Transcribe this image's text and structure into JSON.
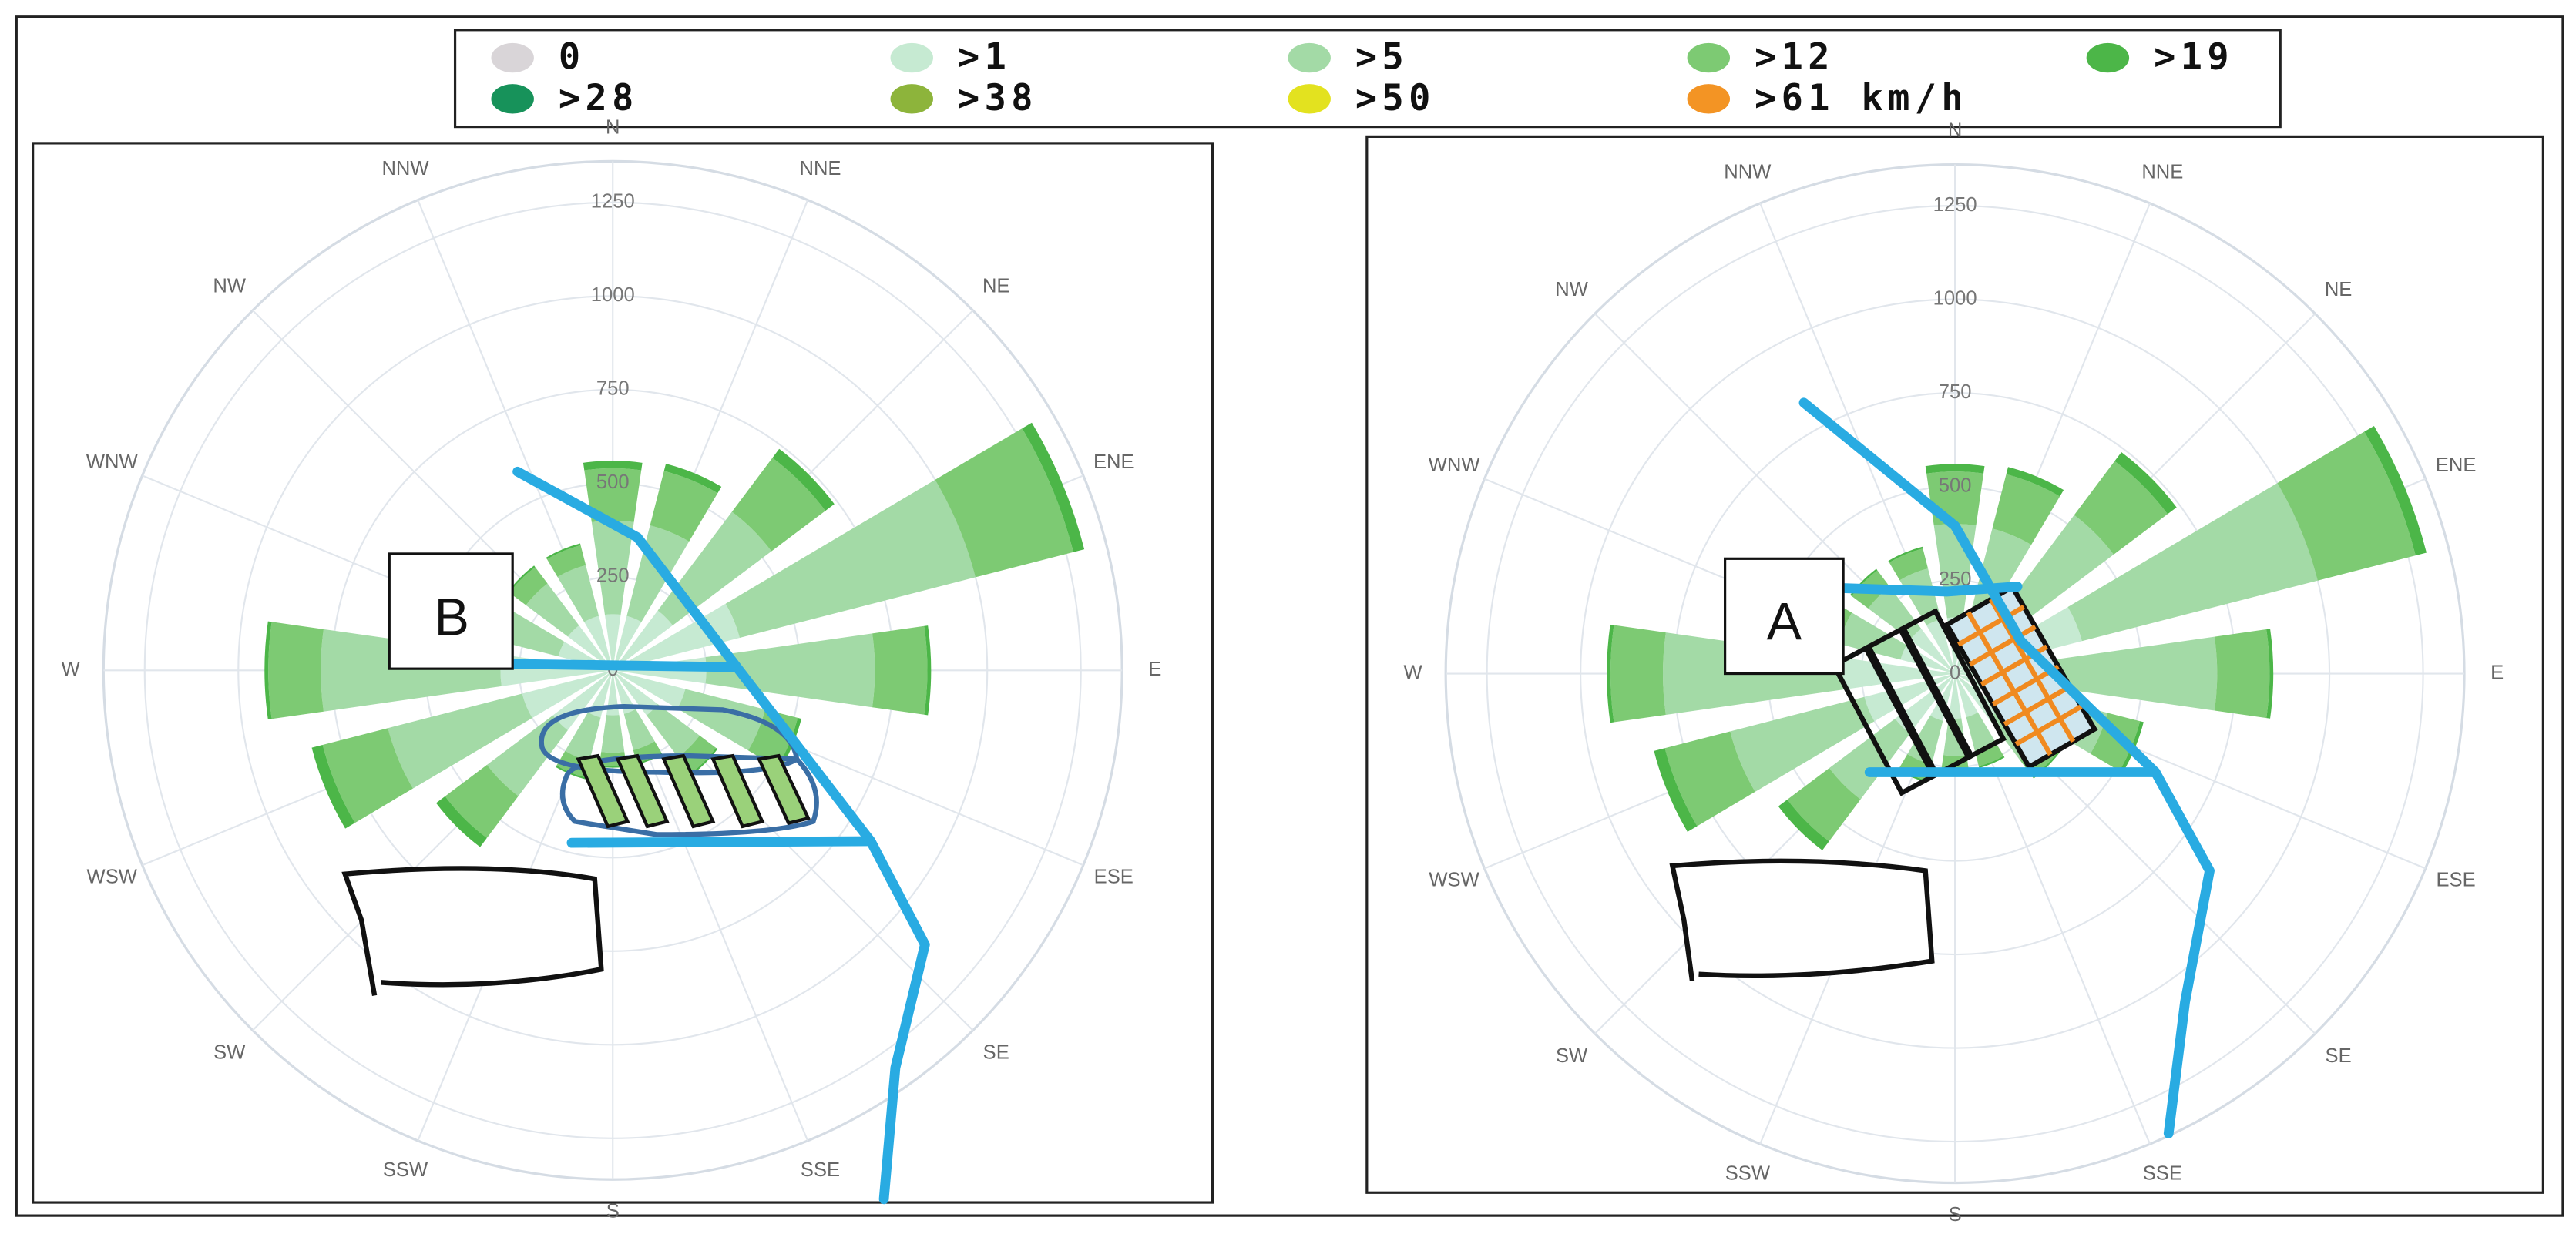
{
  "chart_data": [
    {
      "type": "windrose",
      "categories": [
        "N",
        "NNE",
        "NE",
        "ENE",
        "E",
        "ESE",
        "SE",
        "SSE",
        "S",
        "SSW",
        "SW",
        "WSW",
        "W",
        "WNW",
        "NW",
        "NNW"
      ],
      "rlim": [
        0,
        1360
      ],
      "rticks": [
        0,
        250,
        500,
        750,
        1000,
        1250
      ],
      "grid": true,
      "annotation": "B",
      "series": [
        {
          "name": "0",
          "color": "#d9d5d8",
          "values": [
            0,
            0,
            0,
            0,
            0,
            0,
            0,
            0,
            0,
            0,
            0,
            0,
            0,
            0,
            0,
            0
          ]
        },
        {
          "name": ">1",
          "color": "#c6ead2",
          "values": [
            150,
            150,
            200,
            350,
            250,
            200,
            150,
            120,
            120,
            130,
            200,
            250,
            300,
            150,
            150,
            150
          ]
        },
        {
          "name": ">5",
          "color": "#a3daa6",
          "values": [
            250,
            250,
            330,
            650,
            450,
            220,
            140,
            100,
            100,
            120,
            220,
            370,
            480,
            170,
            140,
            140
          ]
        },
        {
          "name": ">12",
          "color": "#7dca73",
          "values": [
            140,
            150,
            180,
            270,
            140,
            90,
            55,
            35,
            35,
            45,
            140,
            180,
            140,
            70,
            55,
            55
          ]
        },
        {
          "name": ">19",
          "color": "#4cb648",
          "values": [
            20,
            20,
            30,
            30,
            10,
            10,
            5,
            5,
            5,
            5,
            30,
            30,
            10,
            10,
            5,
            5
          ]
        },
        {
          "name": ">28",
          "color": "#17925a",
          "values": [
            0,
            0,
            0,
            0,
            0,
            0,
            0,
            0,
            0,
            0,
            0,
            0,
            0,
            0,
            0,
            0
          ]
        },
        {
          "name": ">38",
          "color": "#8db43b",
          "values": [
            0,
            0,
            0,
            0,
            0,
            0,
            0,
            0,
            0,
            0,
            0,
            0,
            0,
            0,
            0,
            0
          ]
        },
        {
          "name": ">50",
          "color": "#e3e21f",
          "values": [
            0,
            0,
            0,
            0,
            0,
            0,
            0,
            0,
            0,
            0,
            0,
            0,
            0,
            0,
            0,
            0
          ]
        },
        {
          "name": ">61 km/h",
          "color": "#f39424",
          "values": [
            0,
            0,
            0,
            0,
            0,
            0,
            0,
            0,
            0,
            0,
            0,
            0,
            0,
            0,
            0,
            0
          ]
        }
      ]
    },
    {
      "type": "windrose",
      "categories": [
        "N",
        "NNE",
        "NE",
        "ENE",
        "E",
        "ESE",
        "SE",
        "SSE",
        "S",
        "SSW",
        "SW",
        "WSW",
        "W",
        "WNW",
        "NW",
        "NNW"
      ],
      "rlim": [
        0,
        1360
      ],
      "rticks": [
        0,
        250,
        500,
        750,
        1000,
        1250
      ],
      "grid": true,
      "annotation": "A",
      "series": [
        {
          "color": "#d9d5d8",
          "values": [
            0,
            0,
            0,
            0,
            0,
            0,
            0,
            0,
            0,
            0,
            0,
            0,
            0,
            0,
            0,
            0
          ]
        },
        {
          "color": "#c6ead2",
          "values": [
            150,
            150,
            200,
            350,
            250,
            200,
            150,
            120,
            120,
            130,
            200,
            250,
            300,
            150,
            150,
            150
          ]
        },
        {
          "color": "#a3daa6",
          "values": [
            250,
            250,
            330,
            650,
            450,
            220,
            140,
            100,
            100,
            120,
            220,
            370,
            480,
            170,
            140,
            140
          ]
        },
        {
          "color": "#7dca73",
          "values": [
            140,
            150,
            180,
            270,
            140,
            90,
            55,
            35,
            35,
            45,
            140,
            180,
            140,
            70,
            55,
            55
          ]
        },
        {
          "color": "#4cb648",
          "values": [
            20,
            20,
            30,
            30,
            10,
            10,
            5,
            5,
            5,
            5,
            30,
            30,
            10,
            10,
            5,
            5
          ]
        },
        {
          "color": "#17925a",
          "values": [
            0,
            0,
            0,
            0,
            0,
            0,
            0,
            0,
            0,
            0,
            0,
            0,
            0,
            0,
            0,
            0
          ]
        },
        {
          "color": "#8db43b",
          "values": [
            0,
            0,
            0,
            0,
            0,
            0,
            0,
            0,
            0,
            0,
            0,
            0,
            0,
            0,
            0,
            0
          ]
        },
        {
          "color": "#e3e21f",
          "values": [
            0,
            0,
            0,
            0,
            0,
            0,
            0,
            0,
            0,
            0,
            0,
            0,
            0,
            0,
            0,
            0
          ]
        },
        {
          "color": "#f39424",
          "values": [
            0,
            0,
            0,
            0,
            0,
            0,
            0,
            0,
            0,
            0,
            0,
            0,
            0,
            0,
            0,
            0
          ]
        }
      ]
    }
  ]
}
